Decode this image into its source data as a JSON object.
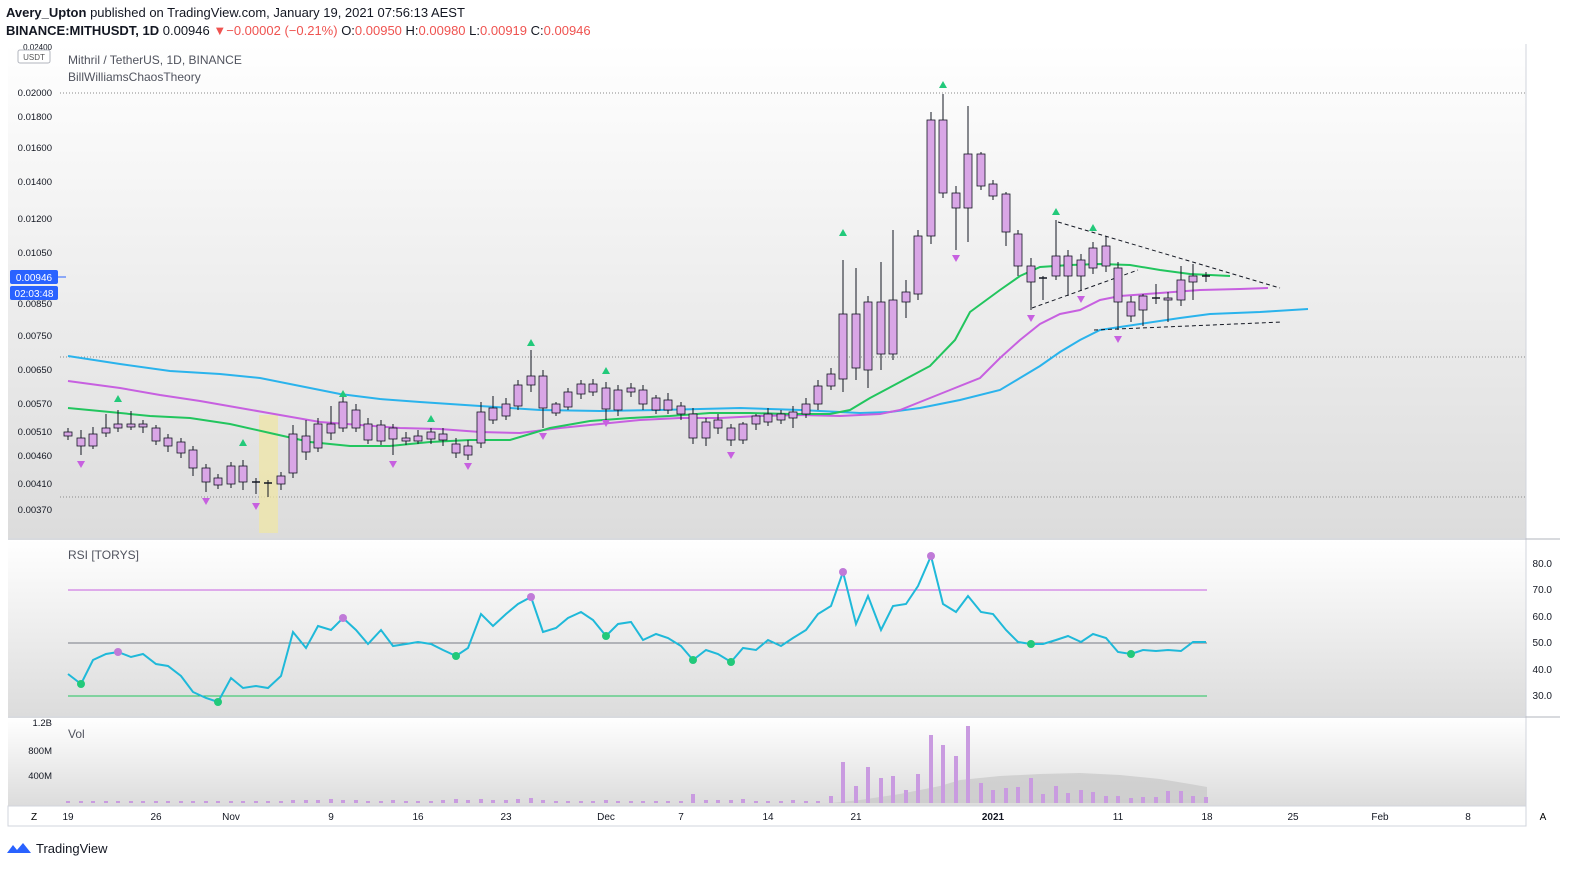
{
  "header": {
    "author": "Avery_Upton",
    "published_text": "published on TradingView.com, January 19, 2021 07:56:13 AEST",
    "symbol_interval": "BINANCE:MITHUSDT, 1D",
    "last": "0.00946",
    "change": "−0.00002 (−0.21%)",
    "o_label": "O:",
    "o_value": "0.00950",
    "h_label": "H:",
    "h_value": "0.00980",
    "l_label": "L:",
    "l_value": "0.00919",
    "c_label": "C:",
    "c_value": "0.00946"
  },
  "main_pane": {
    "title": "Mithril / TetherUS, 1D, BINANCE",
    "indicator": "BillWilliamsChaosTheory",
    "currency_badge": "USDT",
    "price_ticks": [
      "0.02400",
      "0.02000",
      "0.01800",
      "0.01600",
      "0.01400",
      "0.01200",
      "0.01050",
      "0.00850",
      "0.00750",
      "0.00650",
      "0.00570",
      "0.00510",
      "0.00460",
      "0.00410",
      "0.00370"
    ],
    "last_price_label": "0.00946",
    "countdown_label": "02:03:48"
  },
  "rsi_pane": {
    "title": "RSI [TORYS]",
    "ticks": [
      "80.0",
      "70.0",
      "60.0",
      "50.0",
      "40.0",
      "30.0"
    ]
  },
  "vol_pane": {
    "title": "Vol",
    "ticks": [
      "1.2B",
      "800M",
      "400M"
    ]
  },
  "time_axis": {
    "labels": [
      "19",
      "26",
      "Nov",
      "9",
      "16",
      "23",
      "Dec",
      "7",
      "14",
      "21",
      "2021",
      "11",
      "18",
      "25",
      "Feb",
      "8"
    ],
    "left_button": "Z",
    "right_button": "A"
  },
  "footer": {
    "brand": "TradingView"
  },
  "colors": {
    "bull": "#5ed3a8",
    "bear": "#d9a6e6",
    "ma_green": "#22c55e",
    "ma_purple": "#c760e0",
    "ma_blue": "#2ab3ec",
    "rsi": "#1fb9d9"
  },
  "chart_data": {
    "type": "candlestick",
    "title": "Mithril / TetherUS, 1D, BINANCE",
    "x_range": [
      "2020-10-19",
      "2021-01-18"
    ],
    "ohlc_sample": [
      {
        "date": "2020-10-19",
        "o": 0.005,
        "h": 0.0051,
        "l": 0.0049,
        "c": 0.005
      },
      {
        "date": "2020-11-05",
        "o": 0.0039,
        "h": 0.0042,
        "l": 0.0038,
        "c": 0.0039
      },
      {
        "date": "2020-11-26",
        "o": 0.0058,
        "h": 0.0061,
        "l": 0.0052,
        "c": 0.0055
      },
      {
        "date": "2020-12-20",
        "o": 0.0062,
        "h": 0.0105,
        "l": 0.0058,
        "c": 0.0078
      },
      {
        "date": "2020-12-28",
        "o": 0.0178,
        "h": 0.0198,
        "l": 0.0125,
        "c": 0.0128
      },
      {
        "date": "2021-01-05",
        "o": 0.0105,
        "h": 0.0108,
        "l": 0.0084,
        "c": 0.0093
      },
      {
        "date": "2021-01-18",
        "o": 0.0095,
        "h": 0.0098,
        "l": 0.00919,
        "c": 0.00946
      }
    ],
    "rsi": {
      "upper": 70,
      "middle": 50,
      "lower": 30,
      "last": 50.5
    },
    "volume_max": "1.2B"
  }
}
